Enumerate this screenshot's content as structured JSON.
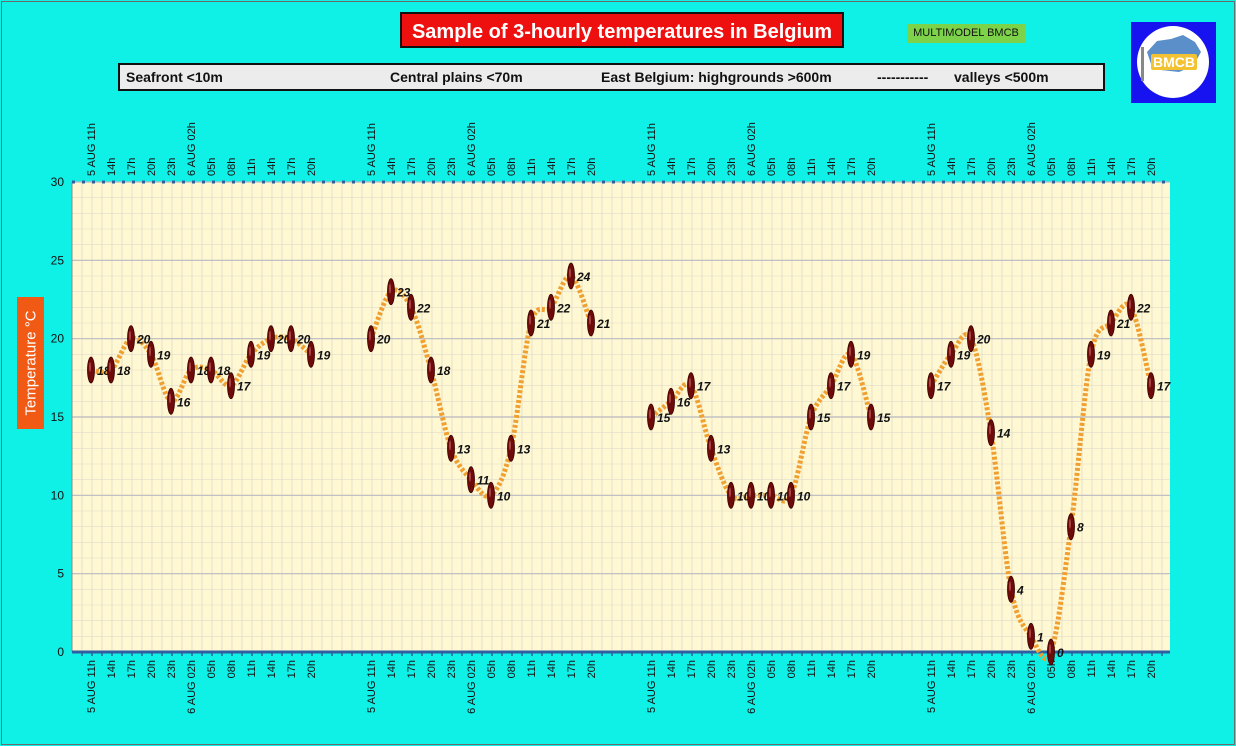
{
  "header": {
    "title": "Sample of 3-hourly temperatures in Belgium",
    "badge": "MULTIMODEL BMCB"
  },
  "legend": {
    "seafront": "Seafront <10m",
    "central": "Central plains <70m",
    "east": "East Belgium: highgrounds >600m",
    "dashes": "-----------",
    "valleys": "valleys <500m"
  },
  "logo": {
    "text": "BMCB",
    "icon": "belgium-map-logo-icon"
  },
  "colors": {
    "background": "#0ff0e6",
    "plot_area": "#fff8d2",
    "title_box": "#ee0f0f",
    "line": "#f0a030",
    "marker": "#6e0a0a",
    "axis": "#2f5f9f"
  },
  "chart_data": {
    "type": "line",
    "title": "Sample of 3-hourly temperatures in Belgium",
    "ylabel": "Temperature °C",
    "ylim": [
      0,
      30
    ],
    "yticks": [
      0,
      5,
      10,
      15,
      20,
      25,
      30
    ],
    "grid": true,
    "x_ticks": [
      "5 AUG 11h",
      "14h",
      "17h",
      "20h",
      "23h",
      "6 AUG 02h",
      "05h",
      "08h",
      "11h",
      "14h",
      "17h",
      "20h"
    ],
    "x_ticks_bottom": [
      "5 AUG  11h",
      "14h",
      "17h",
      "20h",
      "23h",
      "6 AUG 02h",
      "05h",
      "08h",
      "11h",
      "14h",
      "17h",
      "20h"
    ],
    "series": [
      {
        "name": "Seafront <10m",
        "values": [
          18,
          18,
          20,
          19,
          16,
          18,
          18,
          17,
          19,
          20,
          20,
          19
        ]
      },
      {
        "name": "Central plains <70m",
        "values": [
          20,
          23,
          22,
          18,
          13,
          11,
          10,
          13,
          21,
          22,
          24,
          21
        ]
      },
      {
        "name": "East Belgium: highgrounds >600m",
        "values": [
          15,
          16,
          17,
          13,
          10,
          10,
          10,
          10,
          15,
          17,
          19,
          15
        ]
      },
      {
        "name": "valleys <500m",
        "values": [
          17,
          19,
          20,
          14,
          4,
          1,
          0,
          8,
          19,
          21,
          22,
          17
        ]
      }
    ]
  }
}
